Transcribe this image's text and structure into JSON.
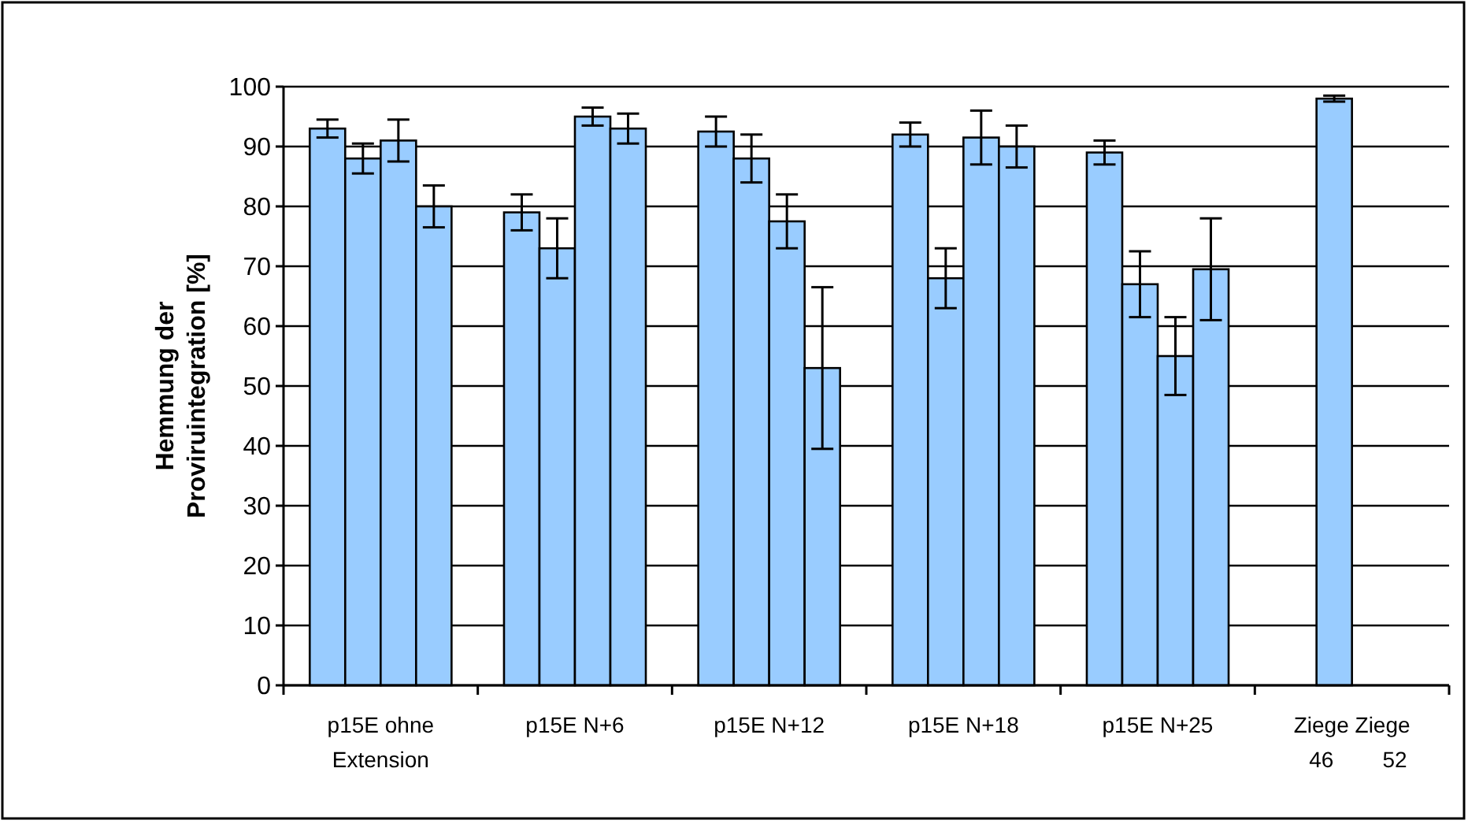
{
  "chart_data": {
    "type": "bar",
    "ylabel": "Hemmung der\nProviruintegration [%]",
    "categories": [
      "p15E ohne\nExtension",
      "p15E N+6",
      "p15E N+12",
      "p15E N+18",
      "p15E N+25",
      "Ziege Ziege\n  46        52"
    ],
    "series": [
      {
        "color": "#99ccff",
        "values": [
          93,
          79,
          92.5,
          92,
          89,
          null
        ],
        "errors": [
          1.5,
          3,
          2.5,
          2,
          2,
          null
        ]
      },
      {
        "color": "#99ccff",
        "values": [
          88,
          73,
          88,
          68,
          67,
          98
        ],
        "errors": [
          2.5,
          5,
          4,
          5,
          5.5,
          0.5
        ]
      },
      {
        "color": "#99ccff",
        "values": [
          91,
          95,
          77.5,
          91.5,
          55,
          null
        ],
        "errors": [
          3.5,
          1.5,
          4.5,
          4.5,
          6.5,
          null
        ]
      },
      {
        "color": "#99ccff",
        "values": [
          80,
          93,
          53,
          90,
          69.5,
          null
        ],
        "errors": [
          3.5,
          2.5,
          13.5,
          3.5,
          8.5,
          null
        ]
      }
    ],
    "ylim": [
      0,
      100
    ],
    "yticks": [
      0,
      10,
      20,
      30,
      40,
      50,
      60,
      70,
      80,
      90,
      100
    ],
    "grid": "y"
  }
}
